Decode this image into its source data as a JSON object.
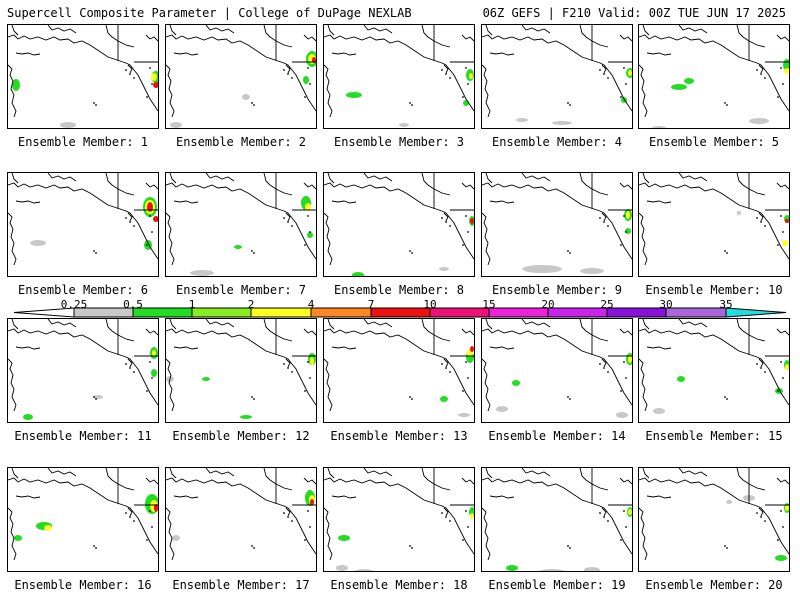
{
  "header": {
    "left": "Supercell Composite Parameter | College of DuPage NEXLAB",
    "right": "06Z GEFS | F210 Valid: 00Z TUE JUN 17 2025"
  },
  "panels": [
    {
      "label": "Ensemble Member: 1"
    },
    {
      "label": "Ensemble Member: 2"
    },
    {
      "label": "Ensemble Member: 3"
    },
    {
      "label": "Ensemble Member: 4"
    },
    {
      "label": "Ensemble Member: 5"
    },
    {
      "label": "Ensemble Member: 6"
    },
    {
      "label": "Ensemble Member: 7"
    },
    {
      "label": "Ensemble Member: 8"
    },
    {
      "label": "Ensemble Member: 9"
    },
    {
      "label": "Ensemble Member: 10"
    },
    {
      "label": "Ensemble Member: 11"
    },
    {
      "label": "Ensemble Member: 12"
    },
    {
      "label": "Ensemble Member: 13"
    },
    {
      "label": "Ensemble Member: 14"
    },
    {
      "label": "Ensemble Member: 15"
    },
    {
      "label": "Ensemble Member: 16"
    },
    {
      "label": "Ensemble Member: 17"
    },
    {
      "label": "Ensemble Member: 18"
    },
    {
      "label": "Ensemble Member: 19"
    },
    {
      "label": "Ensemble Member: 20"
    }
  ],
  "legend": {
    "ticks": [
      "0.25",
      "0.5",
      "1",
      "2",
      "4",
      "7",
      "10",
      "15",
      "20",
      "25",
      "30",
      "35"
    ],
    "colors": [
      "#c8c8c8",
      "#22dd22",
      "#88ee22",
      "#ffff22",
      "#ff8822",
      "#ee1111",
      "#ee1177",
      "#ee22dd",
      "#cc22ee",
      "#8811dd",
      "#aa66dd",
      "#22dddd"
    ]
  },
  "chart_data": {
    "type": "heatmap",
    "title": "Supercell Composite Parameter",
    "subtitle": "06Z GEFS | F210 Valid: 00Z TUE JUN 17 2025",
    "colorbar_levels": [
      0.25,
      0.5,
      1,
      2,
      4,
      7,
      10,
      15,
      20,
      25,
      30,
      35
    ],
    "panel_count": 20
  }
}
